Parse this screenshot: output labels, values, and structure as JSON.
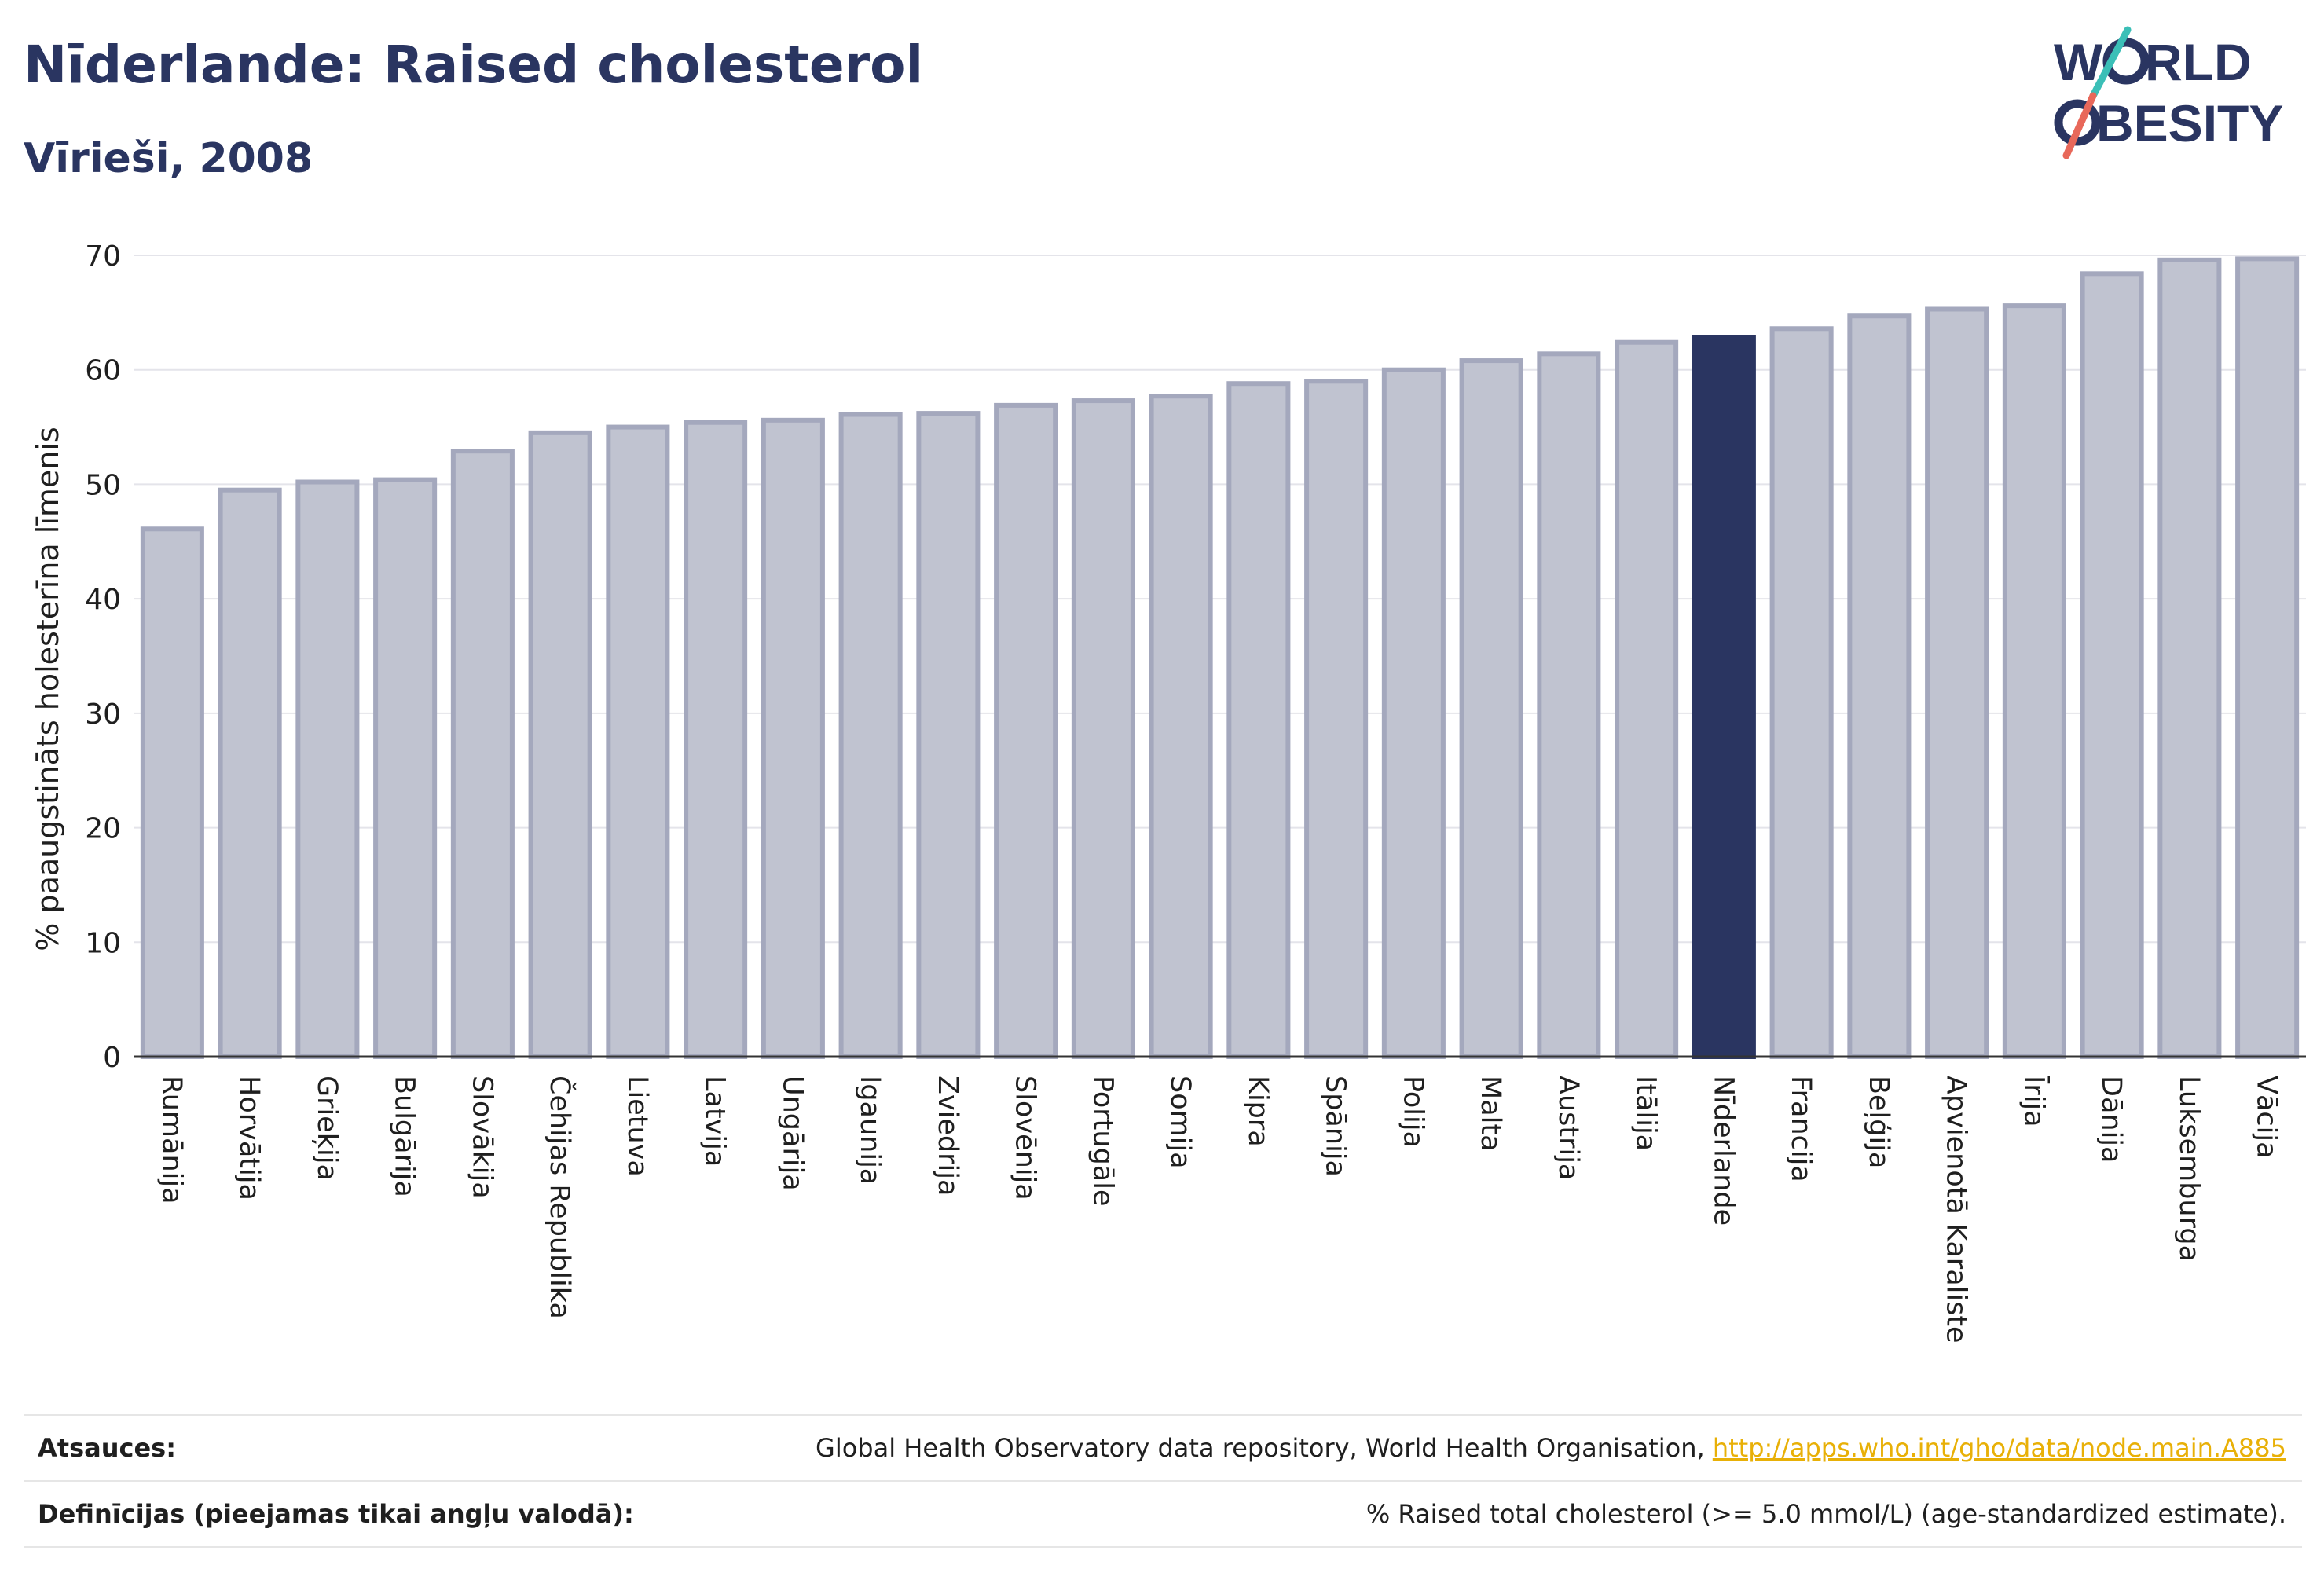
{
  "header": {
    "title": "Nīderlande: Raised cholesterol",
    "subtitle": "Vīrieši, 2008"
  },
  "logo": {
    "line1": "WORLD",
    "line2": "OBESITY",
    "colors": {
      "text": "#2a3561",
      "slash_top": "#3bbfb7",
      "slash_bottom": "#e8685a"
    }
  },
  "chart_data": {
    "type": "bar",
    "title": "Nīderlande: Raised cholesterol",
    "subtitle": "Vīrieši, 2008",
    "xlabel": "",
    "ylabel": "% paaugstināts holesterīna līmenis",
    "ylim": [
      0,
      70
    ],
    "yticks": [
      0,
      10,
      20,
      30,
      40,
      50,
      60,
      70
    ],
    "grid": true,
    "highlight": "Nīderlande",
    "colors": {
      "bar": "#c0c3d0",
      "bar_edge": "#a4a8bd",
      "highlight": "#2a3561",
      "axis": "#333333",
      "grid": "#e4e4ea"
    },
    "categories": [
      "Rumānija",
      "Horvātija",
      "Grieķija",
      "Bulgārija",
      "Slovākija",
      "Čehijas Republika",
      "Lietuva",
      "Latvija",
      "Ungārija",
      "Igaunija",
      "Zviedrija",
      "Slovēnija",
      "Portugāle",
      "Somija",
      "Kipra",
      "Spānija",
      "Polija",
      "Malta",
      "Austrija",
      "Itālija",
      "Nīderlande",
      "Francija",
      "Beļģija",
      "Apvienotā Karaliste",
      "Īrija",
      "Dānija",
      "Luksemburga",
      "Vācija"
    ],
    "values": [
      46.1,
      49.5,
      50.2,
      50.4,
      52.9,
      54.5,
      55.0,
      55.4,
      55.6,
      56.1,
      56.2,
      56.9,
      57.3,
      57.7,
      58.8,
      59.0,
      60.0,
      60.8,
      61.4,
      62.4,
      62.8,
      63.6,
      64.7,
      65.3,
      65.6,
      68.4,
      69.6,
      69.7
    ]
  },
  "footer": {
    "sources_label": "Atsauces:",
    "sources_text": "Global Health Observatory data repository, World Health Organisation, ",
    "sources_link": "http://apps.who.int/gho/data/node.main.A885",
    "definitions_label": "Definīcijas (pieejamas tikai angļu valodā):",
    "definitions_text": "% Raised total cholesterol (>= 5.0 mmol/L) (age-standardized estimate)."
  }
}
